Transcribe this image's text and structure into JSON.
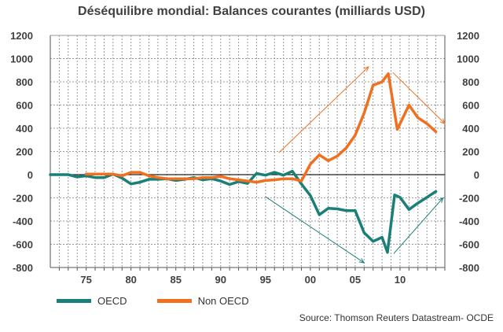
{
  "chart_data": {
    "type": "line",
    "title": "Déséquilibre mondial: Balances courantes (milliards USD)",
    "xlabel": "",
    "ylabel": "",
    "ylim": [
      -800,
      1200
    ],
    "xlim": [
      1971,
      2015
    ],
    "yticks": [
      -800,
      -600,
      -400,
      -200,
      0,
      200,
      400,
      600,
      800,
      1000,
      1200
    ],
    "xticks": [
      {
        "year": 1975,
        "label": "75"
      },
      {
        "year": 1980,
        "label": "80"
      },
      {
        "year": 1985,
        "label": "85"
      },
      {
        "year": 1990,
        "label": "90"
      },
      {
        "year": 1995,
        "label": "95"
      },
      {
        "year": 2000,
        "label": "00"
      },
      {
        "year": 2005,
        "label": "05"
      },
      {
        "year": 2010,
        "label": "10"
      }
    ],
    "series": [
      {
        "name": "OECD",
        "color": "#1a7f77",
        "x": [
          1971,
          1972,
          1973,
          1974,
          1975,
          1976,
          1977,
          1978,
          1979,
          1980,
          1981,
          1982,
          1983,
          1984,
          1985,
          1986,
          1987,
          1988,
          1989,
          1990,
          1991,
          1992,
          1993,
          1994,
          1995,
          1996,
          1997,
          1998,
          1999,
          2000,
          2001,
          2002,
          2003,
          2004,
          2005,
          2006,
          2007,
          2008,
          2008.6,
          2009.4,
          2010,
          2011,
          2012,
          2013,
          2014
        ],
        "values": [
          0,
          0,
          0,
          -20,
          -10,
          -25,
          -25,
          5,
          -30,
          -80,
          -65,
          -40,
          -40,
          -35,
          -50,
          -40,
          -25,
          -45,
          -35,
          -55,
          -85,
          -60,
          -75,
          10,
          -5,
          20,
          -5,
          30,
          -80,
          -180,
          -345,
          -290,
          -295,
          -310,
          -310,
          -500,
          -575,
          -540,
          -670,
          -175,
          -195,
          -300,
          -245,
          -195,
          -145
        ]
      },
      {
        "name": "Non OECD",
        "color": "#f07020",
        "x": [
          1975,
          1976,
          1977,
          1978,
          1979,
          1980,
          1981,
          1982,
          1983,
          1984,
          1985,
          1986,
          1987,
          1988,
          1989,
          1990,
          1991,
          1992,
          1993,
          1994,
          1995,
          1996,
          1997,
          1998,
          1999,
          2000,
          2001,
          2002,
          2003,
          2004,
          2005,
          2006,
          2007,
          2008,
          2008.7,
          2009.7,
          2011,
          2012,
          2013,
          2014
        ],
        "values": [
          5,
          5,
          5,
          5,
          -10,
          20,
          20,
          -10,
          -25,
          -35,
          -35,
          -35,
          -35,
          -25,
          -25,
          -15,
          -35,
          -45,
          -55,
          -65,
          -50,
          -45,
          -35,
          -35,
          -55,
          90,
          170,
          120,
          160,
          230,
          340,
          530,
          770,
          800,
          870,
          390,
          600,
          490,
          440,
          370
        ]
      }
    ],
    "annotations": [
      {
        "type": "arrow",
        "color": "#f07020",
        "from": [
          1996.5,
          190
        ],
        "to": [
          2006.5,
          930
        ]
      },
      {
        "type": "arrow",
        "color": "#f07020",
        "from": [
          2009.2,
          880
        ],
        "to": [
          2015,
          440
        ]
      },
      {
        "type": "arrow",
        "color": "#1a7f77",
        "from": [
          1995,
          -190
        ],
        "to": [
          2006,
          -760
        ]
      },
      {
        "type": "arrow",
        "color": "#1a7f77",
        "from": [
          2009.3,
          -680
        ],
        "to": [
          2014.8,
          -200
        ]
      }
    ]
  },
  "legend": {
    "oecd_label": "OECD",
    "non_oecd_label": "Non OECD"
  },
  "source_text": "Source: Thomson Reuters Datastream- OCDE"
}
